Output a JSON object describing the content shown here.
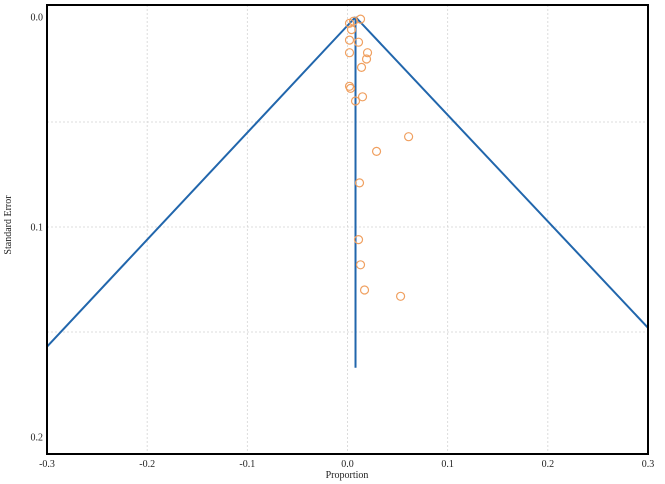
{
  "chart_data": {
    "type": "scatter",
    "subtype": "funnel-plot",
    "title": "",
    "xlabel": "Proportion",
    "ylabel": "Standard Error",
    "xlim": [
      -0.3,
      0.3
    ],
    "ylim": [
      0.2,
      0.0
    ],
    "y_inverted": true,
    "grid": true,
    "legend": "none",
    "x_ticks": [
      -0.3,
      -0.2,
      -0.1,
      0.0,
      0.1,
      0.2,
      0.3
    ],
    "x_tick_labels": [
      "-0.3",
      "-0.2",
      "-0.1",
      "0.0",
      "0.1",
      "0.2",
      "0.3"
    ],
    "y_ticks": [
      0.0,
      0.1,
      0.2
    ],
    "y_tick_labels": [
      "0.0",
      "0.1",
      "0.2"
    ],
    "pooled_estimate": 0.008,
    "funnel_apex": [
      0.008,
      0.0
    ],
    "funnel_left_end": [
      -0.3,
      0.157
    ],
    "funnel_right_end": [
      0.3,
      0.148
    ],
    "center_line": {
      "x": 0.008,
      "y_from": 0.0,
      "y_to": 0.167
    },
    "line_color": "#2166ac",
    "point_color": "#f0a060",
    "points": [
      {
        "x": 0.002,
        "y": 0.003
      },
      {
        "x": 0.006,
        "y": 0.002
      },
      {
        "x": 0.013,
        "y": 0.001
      },
      {
        "x": 0.004,
        "y": 0.006
      },
      {
        "x": 0.002,
        "y": 0.011
      },
      {
        "x": 0.011,
        "y": 0.012
      },
      {
        "x": 0.02,
        "y": 0.017
      },
      {
        "x": 0.019,
        "y": 0.02
      },
      {
        "x": 0.002,
        "y": 0.017
      },
      {
        "x": 0.014,
        "y": 0.024
      },
      {
        "x": 0.002,
        "y": 0.033
      },
      {
        "x": 0.003,
        "y": 0.034
      },
      {
        "x": 0.015,
        "y": 0.038
      },
      {
        "x": 0.008,
        "y": 0.04
      },
      {
        "x": 0.061,
        "y": 0.057
      },
      {
        "x": 0.029,
        "y": 0.064
      },
      {
        "x": 0.012,
        "y": 0.079
      },
      {
        "x": 0.011,
        "y": 0.106
      },
      {
        "x": 0.013,
        "y": 0.118
      },
      {
        "x": 0.017,
        "y": 0.13
      },
      {
        "x": 0.053,
        "y": 0.133
      }
    ]
  }
}
